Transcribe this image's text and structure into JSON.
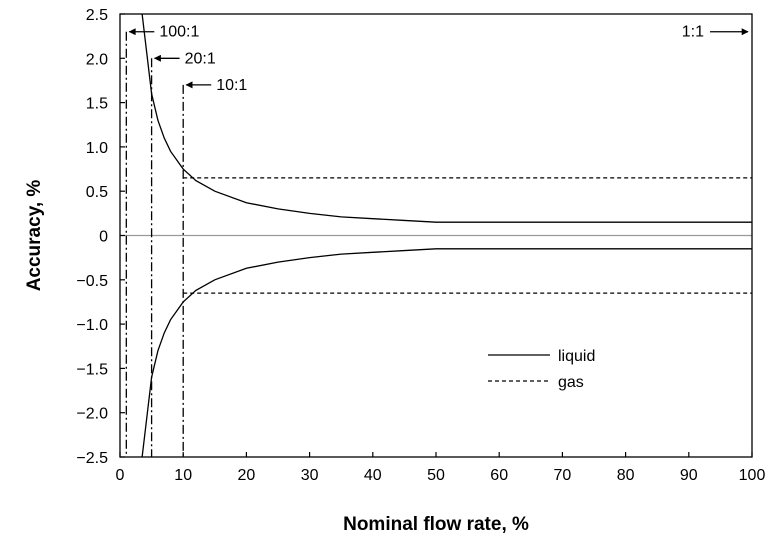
{
  "chart_data": {
    "type": "line",
    "title": "",
    "xlabel": "Nominal flow rate, %",
    "ylabel": "Accuracy, %",
    "xlim": [
      0,
      100
    ],
    "ylim": [
      -2.5,
      2.5
    ],
    "x_ticks": [
      0,
      10,
      20,
      30,
      40,
      50,
      60,
      70,
      80,
      90,
      100
    ],
    "x_tick_labels": [
      "0",
      "10",
      "20",
      "30",
      "40",
      "50",
      "60",
      "70",
      "80",
      "90",
      "100"
    ],
    "y_ticks": [
      2.5,
      2.0,
      1.5,
      1.0,
      0.5,
      0,
      -0.5,
      -1.0,
      -1.5,
      -2.0,
      -2.5
    ],
    "y_tick_labels": [
      "2.5",
      "2.0",
      "1.5",
      "1.0",
      "0.5",
      "0",
      "−0.5",
      "−1.0",
      "−1.5",
      "−2.0",
      "−2.5"
    ],
    "grid": false,
    "legend_position": "lower-right",
    "series": [
      {
        "name": "liquid",
        "style": "solid",
        "x": [
          3.5,
          4,
          5,
          6,
          7,
          8,
          10,
          12,
          15,
          20,
          25,
          30,
          35,
          40,
          45,
          50,
          100
        ],
        "upper": [
          2.5,
          2.2,
          1.6,
          1.3,
          1.1,
          0.95,
          0.75,
          0.62,
          0.5,
          0.37,
          0.3,
          0.25,
          0.21,
          0.19,
          0.17,
          0.15,
          0.15
        ],
        "lower": [
          -2.5,
          -2.2,
          -1.6,
          -1.3,
          -1.1,
          -0.95,
          -0.75,
          -0.62,
          -0.5,
          -0.37,
          -0.3,
          -0.25,
          -0.21,
          -0.19,
          -0.17,
          -0.15,
          -0.15
        ]
      },
      {
        "name": "gas",
        "style": "dashed",
        "x": [
          10,
          100
        ],
        "upper": [
          0.65,
          0.65
        ],
        "lower": [
          -0.65,
          -0.65
        ]
      }
    ],
    "turndown_lines": [
      {
        "label": "100:1",
        "x": 1,
        "y_top": 2.3
      },
      {
        "label": "20:1",
        "x": 5,
        "y_top": 2.0
      },
      {
        "label": "10:1",
        "x": 10,
        "y_top": 1.7
      },
      {
        "label": "1:1",
        "x": 100,
        "y_top": 2.3
      }
    ],
    "zero_line": 0
  }
}
